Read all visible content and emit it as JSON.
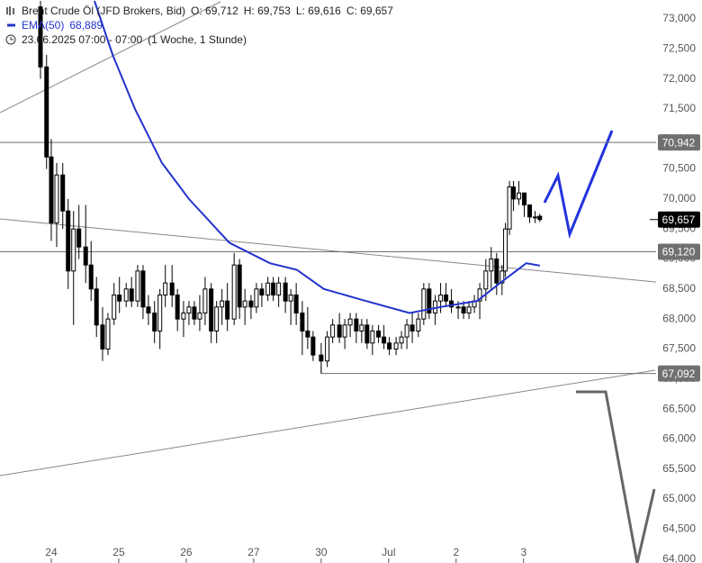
{
  "header": {
    "instrument": "Brent Crude Öl (JFD Brokers, Bid)",
    "open": "O: 69,712",
    "high": "H: 69,753",
    "low": "L: 69,616",
    "close": "C: 69,657",
    "indicator": "EMA(50)",
    "indicator_value": "68,889",
    "range": "23.06.2025 07:00 - 07:00",
    "interval": "(1 Woche, 1 Stunde)"
  },
  "chart_data": {
    "type": "candlestick",
    "xlim": [
      -0.76,
      8.95
    ],
    "ylim": [
      63.935,
      73.315
    ],
    "xticks": [
      {
        "value": 0,
        "label": "24"
      },
      {
        "value": 1,
        "label": "25"
      },
      {
        "value": 2,
        "label": "26"
      },
      {
        "value": 3,
        "label": "27"
      },
      {
        "value": 4,
        "label": "30"
      },
      {
        "value": 5,
        "label": "Jul"
      },
      {
        "value": 6,
        "label": "2"
      },
      {
        "value": 7,
        "label": "3"
      }
    ],
    "yticks": [
      {
        "value": 73,
        "label": "73,000"
      },
      {
        "value": 72.5,
        "label": "72,500"
      },
      {
        "value": 72,
        "label": "72,000"
      },
      {
        "value": 71.5,
        "label": "71,500"
      },
      {
        "value": 71,
        "label": "71,000"
      },
      {
        "value": 70.5,
        "label": "70,500"
      },
      {
        "value": 70,
        "label": "70,000"
      },
      {
        "value": 69.5,
        "label": "69,500"
      },
      {
        "value": 69,
        "label": "69,000"
      },
      {
        "value": 68.5,
        "label": "68,500"
      },
      {
        "value": 68,
        "label": "68,000"
      },
      {
        "value": 67.5,
        "label": "67,500"
      },
      {
        "value": 67,
        "label": "67,000"
      },
      {
        "value": 66.5,
        "label": "66,500"
      },
      {
        "value": 66,
        "label": "66,000"
      },
      {
        "value": 65.5,
        "label": "65,500"
      },
      {
        "value": 65,
        "label": "65,000"
      },
      {
        "value": 64.5,
        "label": "64,500"
      },
      {
        "value": 64,
        "label": "64,000"
      }
    ],
    "levels": [
      {
        "value": 70.942,
        "label": "70,942"
      },
      {
        "value": 69.12,
        "label": "69,120"
      },
      {
        "value": 67.092,
        "label": "67,092"
      }
    ],
    "last_price": {
      "value": 69.657,
      "label": "69,657"
    },
    "candles": [
      {
        "x": -0.16,
        "o": 73.2,
        "h": 73.3,
        "l": 72.0,
        "c": 72.2
      },
      {
        "x": -0.07,
        "o": 72.2,
        "h": 72.4,
        "l": 70.5,
        "c": 70.7
      },
      {
        "x": 0,
        "o": 70.7,
        "h": 71.0,
        "l": 69.3,
        "c": 69.6
      },
      {
        "x": 0.08,
        "o": 69.6,
        "h": 70.6,
        "l": 69.2,
        "c": 70.4
      },
      {
        "x": 0.17,
        "o": 70.4,
        "h": 70.6,
        "l": 69.5,
        "c": 69.8
      },
      {
        "x": 0.25,
        "o": 69.8,
        "h": 70.0,
        "l": 68.5,
        "c": 68.8
      },
      {
        "x": 0.33,
        "o": 68.8,
        "h": 69.8,
        "l": 67.9,
        "c": 69.5
      },
      {
        "x": 0.41,
        "o": 69.5,
        "h": 69.9,
        "l": 69.0,
        "c": 69.2
      },
      {
        "x": 0.51,
        "o": 69.2,
        "h": 69.9,
        "l": 68.6,
        "c": 68.9
      },
      {
        "x": 0.59,
        "o": 68.9,
        "h": 69.3,
        "l": 68.3,
        "c": 68.5
      },
      {
        "x": 0.67,
        "o": 68.5,
        "h": 68.7,
        "l": 67.7,
        "c": 67.9
      },
      {
        "x": 0.76,
        "o": 67.9,
        "h": 68.2,
        "l": 67.3,
        "c": 67.5
      },
      {
        "x": 0.84,
        "o": 67.5,
        "h": 68.1,
        "l": 67.4,
        "c": 68.0
      },
      {
        "x": 0.93,
        "o": 68.0,
        "h": 68.6,
        "l": 67.9,
        "c": 68.4
      },
      {
        "x": 1.01,
        "o": 68.4,
        "h": 68.7,
        "l": 68.1,
        "c": 68.3
      },
      {
        "x": 1.11,
        "o": 68.3,
        "h": 68.6,
        "l": 68.2,
        "c": 68.5
      },
      {
        "x": 1.19,
        "o": 68.5,
        "h": 68.7,
        "l": 68.2,
        "c": 68.3
      },
      {
        "x": 1.28,
        "o": 68.3,
        "h": 68.9,
        "l": 68.2,
        "c": 68.8
      },
      {
        "x": 1.36,
        "o": 68.8,
        "h": 68.9,
        "l": 68.0,
        "c": 68.2
      },
      {
        "x": 1.44,
        "o": 68.2,
        "h": 68.4,
        "l": 67.9,
        "c": 68.1
      },
      {
        "x": 1.53,
        "o": 68.1,
        "h": 68.3,
        "l": 67.6,
        "c": 67.8
      },
      {
        "x": 1.61,
        "o": 67.8,
        "h": 68.5,
        "l": 67.5,
        "c": 68.4
      },
      {
        "x": 1.69,
        "o": 68.4,
        "h": 68.9,
        "l": 68.2,
        "c": 68.6
      },
      {
        "x": 1.79,
        "o": 68.6,
        "h": 68.9,
        "l": 68.2,
        "c": 68.4
      },
      {
        "x": 1.87,
        "o": 68.4,
        "h": 68.5,
        "l": 67.8,
        "c": 68.0
      },
      {
        "x": 1.96,
        "o": 68.0,
        "h": 68.3,
        "l": 67.7,
        "c": 68.1
      },
      {
        "x": 2.04,
        "o": 68.1,
        "h": 68.3,
        "l": 67.9,
        "c": 68.2
      },
      {
        "x": 2.12,
        "o": 68.2,
        "h": 68.3,
        "l": 67.9,
        "c": 68.0
      },
      {
        "x": 2.2,
        "o": 68.0,
        "h": 68.4,
        "l": 67.8,
        "c": 68.1
      },
      {
        "x": 2.28,
        "o": 68.1,
        "h": 68.7,
        "l": 67.9,
        "c": 68.5
      },
      {
        "x": 2.37,
        "o": 68.5,
        "h": 68.6,
        "l": 67.6,
        "c": 67.8
      },
      {
        "x": 2.45,
        "o": 67.8,
        "h": 68.3,
        "l": 67.6,
        "c": 68.2
      },
      {
        "x": 2.53,
        "o": 68.2,
        "h": 68.5,
        "l": 67.9,
        "c": 68.3
      },
      {
        "x": 2.61,
        "o": 68.3,
        "h": 68.6,
        "l": 67.8,
        "c": 68.0
      },
      {
        "x": 2.71,
        "o": 68.0,
        "h": 69.1,
        "l": 67.9,
        "c": 68.9
      },
      {
        "x": 2.79,
        "o": 68.9,
        "h": 69.0,
        "l": 68.0,
        "c": 68.2
      },
      {
        "x": 2.87,
        "o": 68.2,
        "h": 68.5,
        "l": 67.9,
        "c": 68.3
      },
      {
        "x": 2.96,
        "o": 68.3,
        "h": 68.4,
        "l": 68.0,
        "c": 68.2
      },
      {
        "x": 3.04,
        "o": 68.2,
        "h": 68.6,
        "l": 68.1,
        "c": 68.5
      },
      {
        "x": 3.12,
        "o": 68.5,
        "h": 68.6,
        "l": 68.2,
        "c": 68.4
      },
      {
        "x": 3.21,
        "o": 68.4,
        "h": 68.7,
        "l": 68.3,
        "c": 68.6
      },
      {
        "x": 3.29,
        "o": 68.6,
        "h": 68.7,
        "l": 68.3,
        "c": 68.4
      },
      {
        "x": 3.37,
        "o": 68.4,
        "h": 68.7,
        "l": 68.2,
        "c": 68.6
      },
      {
        "x": 3.47,
        "o": 68.6,
        "h": 68.7,
        "l": 68.1,
        "c": 68.3
      },
      {
        "x": 3.55,
        "o": 68.3,
        "h": 68.5,
        "l": 67.9,
        "c": 68.4
      },
      {
        "x": 3.63,
        "o": 68.4,
        "h": 68.6,
        "l": 67.9,
        "c": 68.1
      },
      {
        "x": 3.72,
        "o": 68.1,
        "h": 68.3,
        "l": 67.4,
        "c": 67.8
      },
      {
        "x": 3.8,
        "o": 67.8,
        "h": 68.2,
        "l": 67.5,
        "c": 67.7
      },
      {
        "x": 3.88,
        "o": 67.7,
        "h": 67.8,
        "l": 67.3,
        "c": 67.4
      },
      {
        "x": 4,
        "o": 67.4,
        "h": 67.6,
        "l": 67.092,
        "c": 67.3
      },
      {
        "x": 4.09,
        "o": 67.3,
        "h": 67.8,
        "l": 67.2,
        "c": 67.7
      },
      {
        "x": 4.17,
        "o": 67.7,
        "h": 68.0,
        "l": 67.6,
        "c": 67.9
      },
      {
        "x": 4.27,
        "o": 67.9,
        "h": 68.1,
        "l": 67.6,
        "c": 67.7
      },
      {
        "x": 4.35,
        "o": 67.7,
        "h": 68.0,
        "l": 67.5,
        "c": 67.9
      },
      {
        "x": 4.43,
        "o": 67.9,
        "h": 68.1,
        "l": 67.7,
        "c": 68.0
      },
      {
        "x": 4.52,
        "o": 68.0,
        "h": 68.1,
        "l": 67.6,
        "c": 67.8
      },
      {
        "x": 4.6,
        "o": 67.8,
        "h": 68.0,
        "l": 67.6,
        "c": 67.9
      },
      {
        "x": 4.68,
        "o": 67.9,
        "h": 68.0,
        "l": 67.5,
        "c": 67.6
      },
      {
        "x": 4.76,
        "o": 67.6,
        "h": 67.9,
        "l": 67.4,
        "c": 67.8
      },
      {
        "x": 4.85,
        "o": 67.8,
        "h": 67.9,
        "l": 67.6,
        "c": 67.7
      },
      {
        "x": 4.93,
        "o": 67.7,
        "h": 67.9,
        "l": 67.5,
        "c": 67.6
      },
      {
        "x": 5.01,
        "o": 67.6,
        "h": 67.7,
        "l": 67.4,
        "c": 67.5
      },
      {
        "x": 5.11,
        "o": 67.5,
        "h": 67.7,
        "l": 67.4,
        "c": 67.6
      },
      {
        "x": 5.19,
        "o": 67.6,
        "h": 67.8,
        "l": 67.5,
        "c": 67.7
      },
      {
        "x": 5.27,
        "o": 67.7,
        "h": 68.0,
        "l": 67.5,
        "c": 67.9
      },
      {
        "x": 5.35,
        "o": 67.9,
        "h": 68.1,
        "l": 67.6,
        "c": 67.8
      },
      {
        "x": 5.44,
        "o": 67.8,
        "h": 68.1,
        "l": 67.7,
        "c": 68.0
      },
      {
        "x": 5.52,
        "o": 68.0,
        "h": 68.6,
        "l": 67.9,
        "c": 68.5
      },
      {
        "x": 5.6,
        "o": 68.5,
        "h": 68.6,
        "l": 68.0,
        "c": 68.1
      },
      {
        "x": 5.69,
        "o": 68.1,
        "h": 68.4,
        "l": 67.9,
        "c": 68.3
      },
      {
        "x": 5.77,
        "o": 68.3,
        "h": 68.6,
        "l": 68.1,
        "c": 68.4
      },
      {
        "x": 5.85,
        "o": 68.4,
        "h": 68.6,
        "l": 68.2,
        "c": 68.3
      },
      {
        "x": 5.93,
        "o": 68.3,
        "h": 68.5,
        "l": 68.1,
        "c": 68.2
      },
      {
        "x": 6.03,
        "o": 68.2,
        "h": 68.3,
        "l": 68.0,
        "c": 68.2
      },
      {
        "x": 6.11,
        "o": 68.2,
        "h": 68.3,
        "l": 68.0,
        "c": 68.1
      },
      {
        "x": 6.19,
        "o": 68.1,
        "h": 68.3,
        "l": 68.0,
        "c": 68.2
      },
      {
        "x": 6.27,
        "o": 68.2,
        "h": 68.4,
        "l": 68.1,
        "c": 68.3
      },
      {
        "x": 6.35,
        "o": 68.3,
        "h": 68.6,
        "l": 68.0,
        "c": 68.5
      },
      {
        "x": 6.44,
        "o": 68.5,
        "h": 69.0,
        "l": 68.3,
        "c": 68.8
      },
      {
        "x": 6.52,
        "o": 68.8,
        "h": 69.2,
        "l": 68.5,
        "c": 69.0
      },
      {
        "x": 6.6,
        "o": 69.0,
        "h": 69.1,
        "l": 68.4,
        "c": 68.6
      },
      {
        "x": 6.68,
        "o": 68.6,
        "h": 68.9,
        "l": 68.4,
        "c": 68.8
      },
      {
        "x": 6.73,
        "o": 68.8,
        "h": 69.6,
        "l": 68.7,
        "c": 69.5
      },
      {
        "x": 6.79,
        "o": 69.5,
        "h": 70.3,
        "l": 69.4,
        "c": 70.2
      },
      {
        "x": 6.85,
        "o": 70.2,
        "h": 70.3,
        "l": 69.8,
        "c": 70.0
      },
      {
        "x": 6.93,
        "o": 70.0,
        "h": 70.3,
        "l": 69.9,
        "c": 70.1
      },
      {
        "x": 7.01,
        "o": 70.1,
        "h": 70.1,
        "l": 69.7,
        "c": 69.9
      },
      {
        "x": 7.09,
        "o": 69.9,
        "h": 69.9,
        "l": 69.6,
        "c": 69.7
      },
      {
        "x": 7.17,
        "o": 69.7,
        "h": 69.8,
        "l": 69.6,
        "c": 69.7
      },
      {
        "x": 7.24,
        "o": 69.712,
        "h": 69.753,
        "l": 69.616,
        "c": 69.657
      }
    ],
    "ema": {
      "name": "EMA(50)",
      "color": "#2233cc",
      "x": [
        0.64,
        0.91,
        1.24,
        1.64,
        2.04,
        2.64,
        3.24,
        3.64,
        4.04,
        4.57,
        5.31,
        5.77,
        6.31,
        6.71,
        7.04,
        7.24
      ],
      "values": [
        73.3,
        72.4,
        71.5,
        70.6,
        70.0,
        69.27,
        68.93,
        68.82,
        68.5,
        68.33,
        68.1,
        68.2,
        68.3,
        68.65,
        68.93,
        68.889
      ]
    },
    "candle_color": "#000000",
    "level_color": "#707070"
  }
}
